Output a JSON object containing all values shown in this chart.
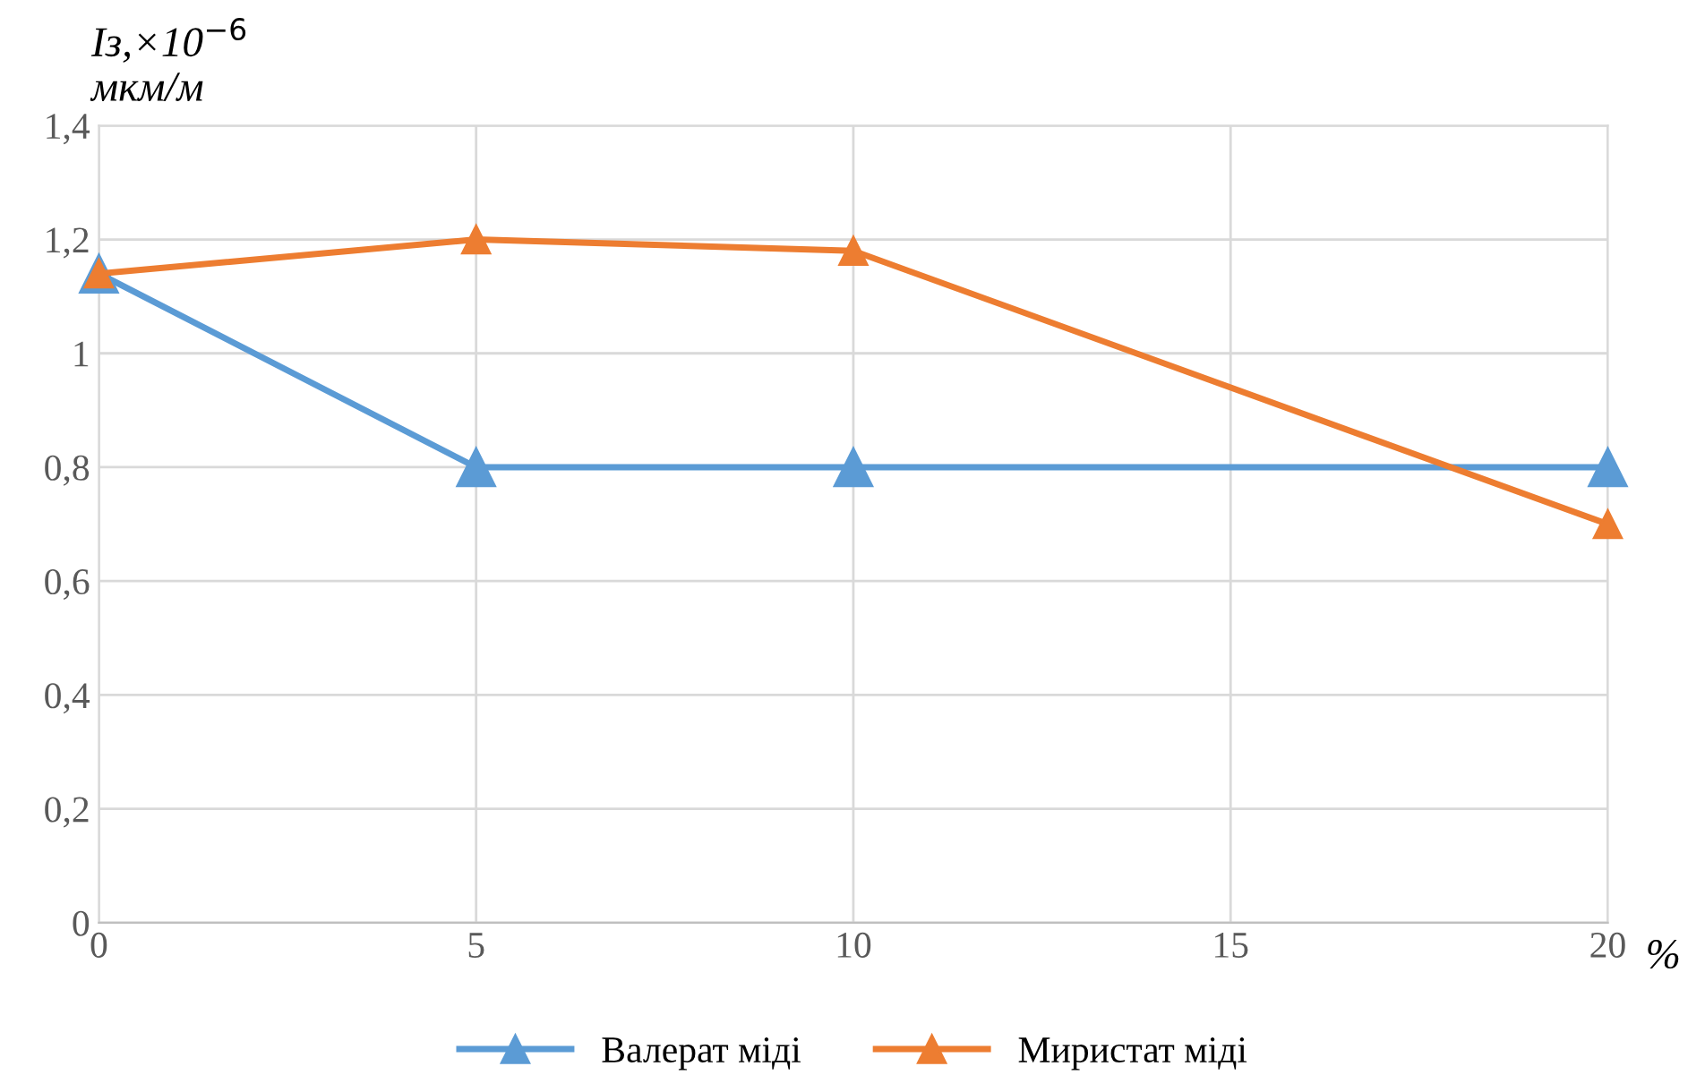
{
  "chart_data": {
    "type": "line",
    "ylabel": "Iз,×10$^{−6}$\nмкм/м",
    "xlabel": "%",
    "x": [
      0,
      5,
      10,
      20
    ],
    "series": [
      {
        "name": "Валерат міді",
        "color": "#5b9bd5",
        "values": [
          1.14,
          0.8,
          0.8,
          0.8
        ]
      },
      {
        "name": "Миристат міді",
        "color": "#ed7d31",
        "values": [
          1.14,
          1.2,
          1.18,
          0.7
        ]
      }
    ],
    "xlim": [
      0,
      20
    ],
    "xticks": [
      0,
      5,
      10,
      15,
      20
    ],
    "ylim": [
      0,
      1.4
    ],
    "yticks": [
      {
        "value": 0,
        "label": "0"
      },
      {
        "value": 0.2,
        "label": "0,2"
      },
      {
        "value": 0.4,
        "label": "0,4"
      },
      {
        "value": 0.6,
        "label": "0,6"
      },
      {
        "value": 0.8,
        "label": "0,8"
      },
      {
        "value": 1,
        "label": "1"
      },
      {
        "value": 1.2,
        "label": "1,2"
      },
      {
        "value": 1.4,
        "label": "1,4"
      }
    ],
    "grid": true,
    "legend": "bottom",
    "marker": "triangle",
    "line_style": "solid"
  }
}
